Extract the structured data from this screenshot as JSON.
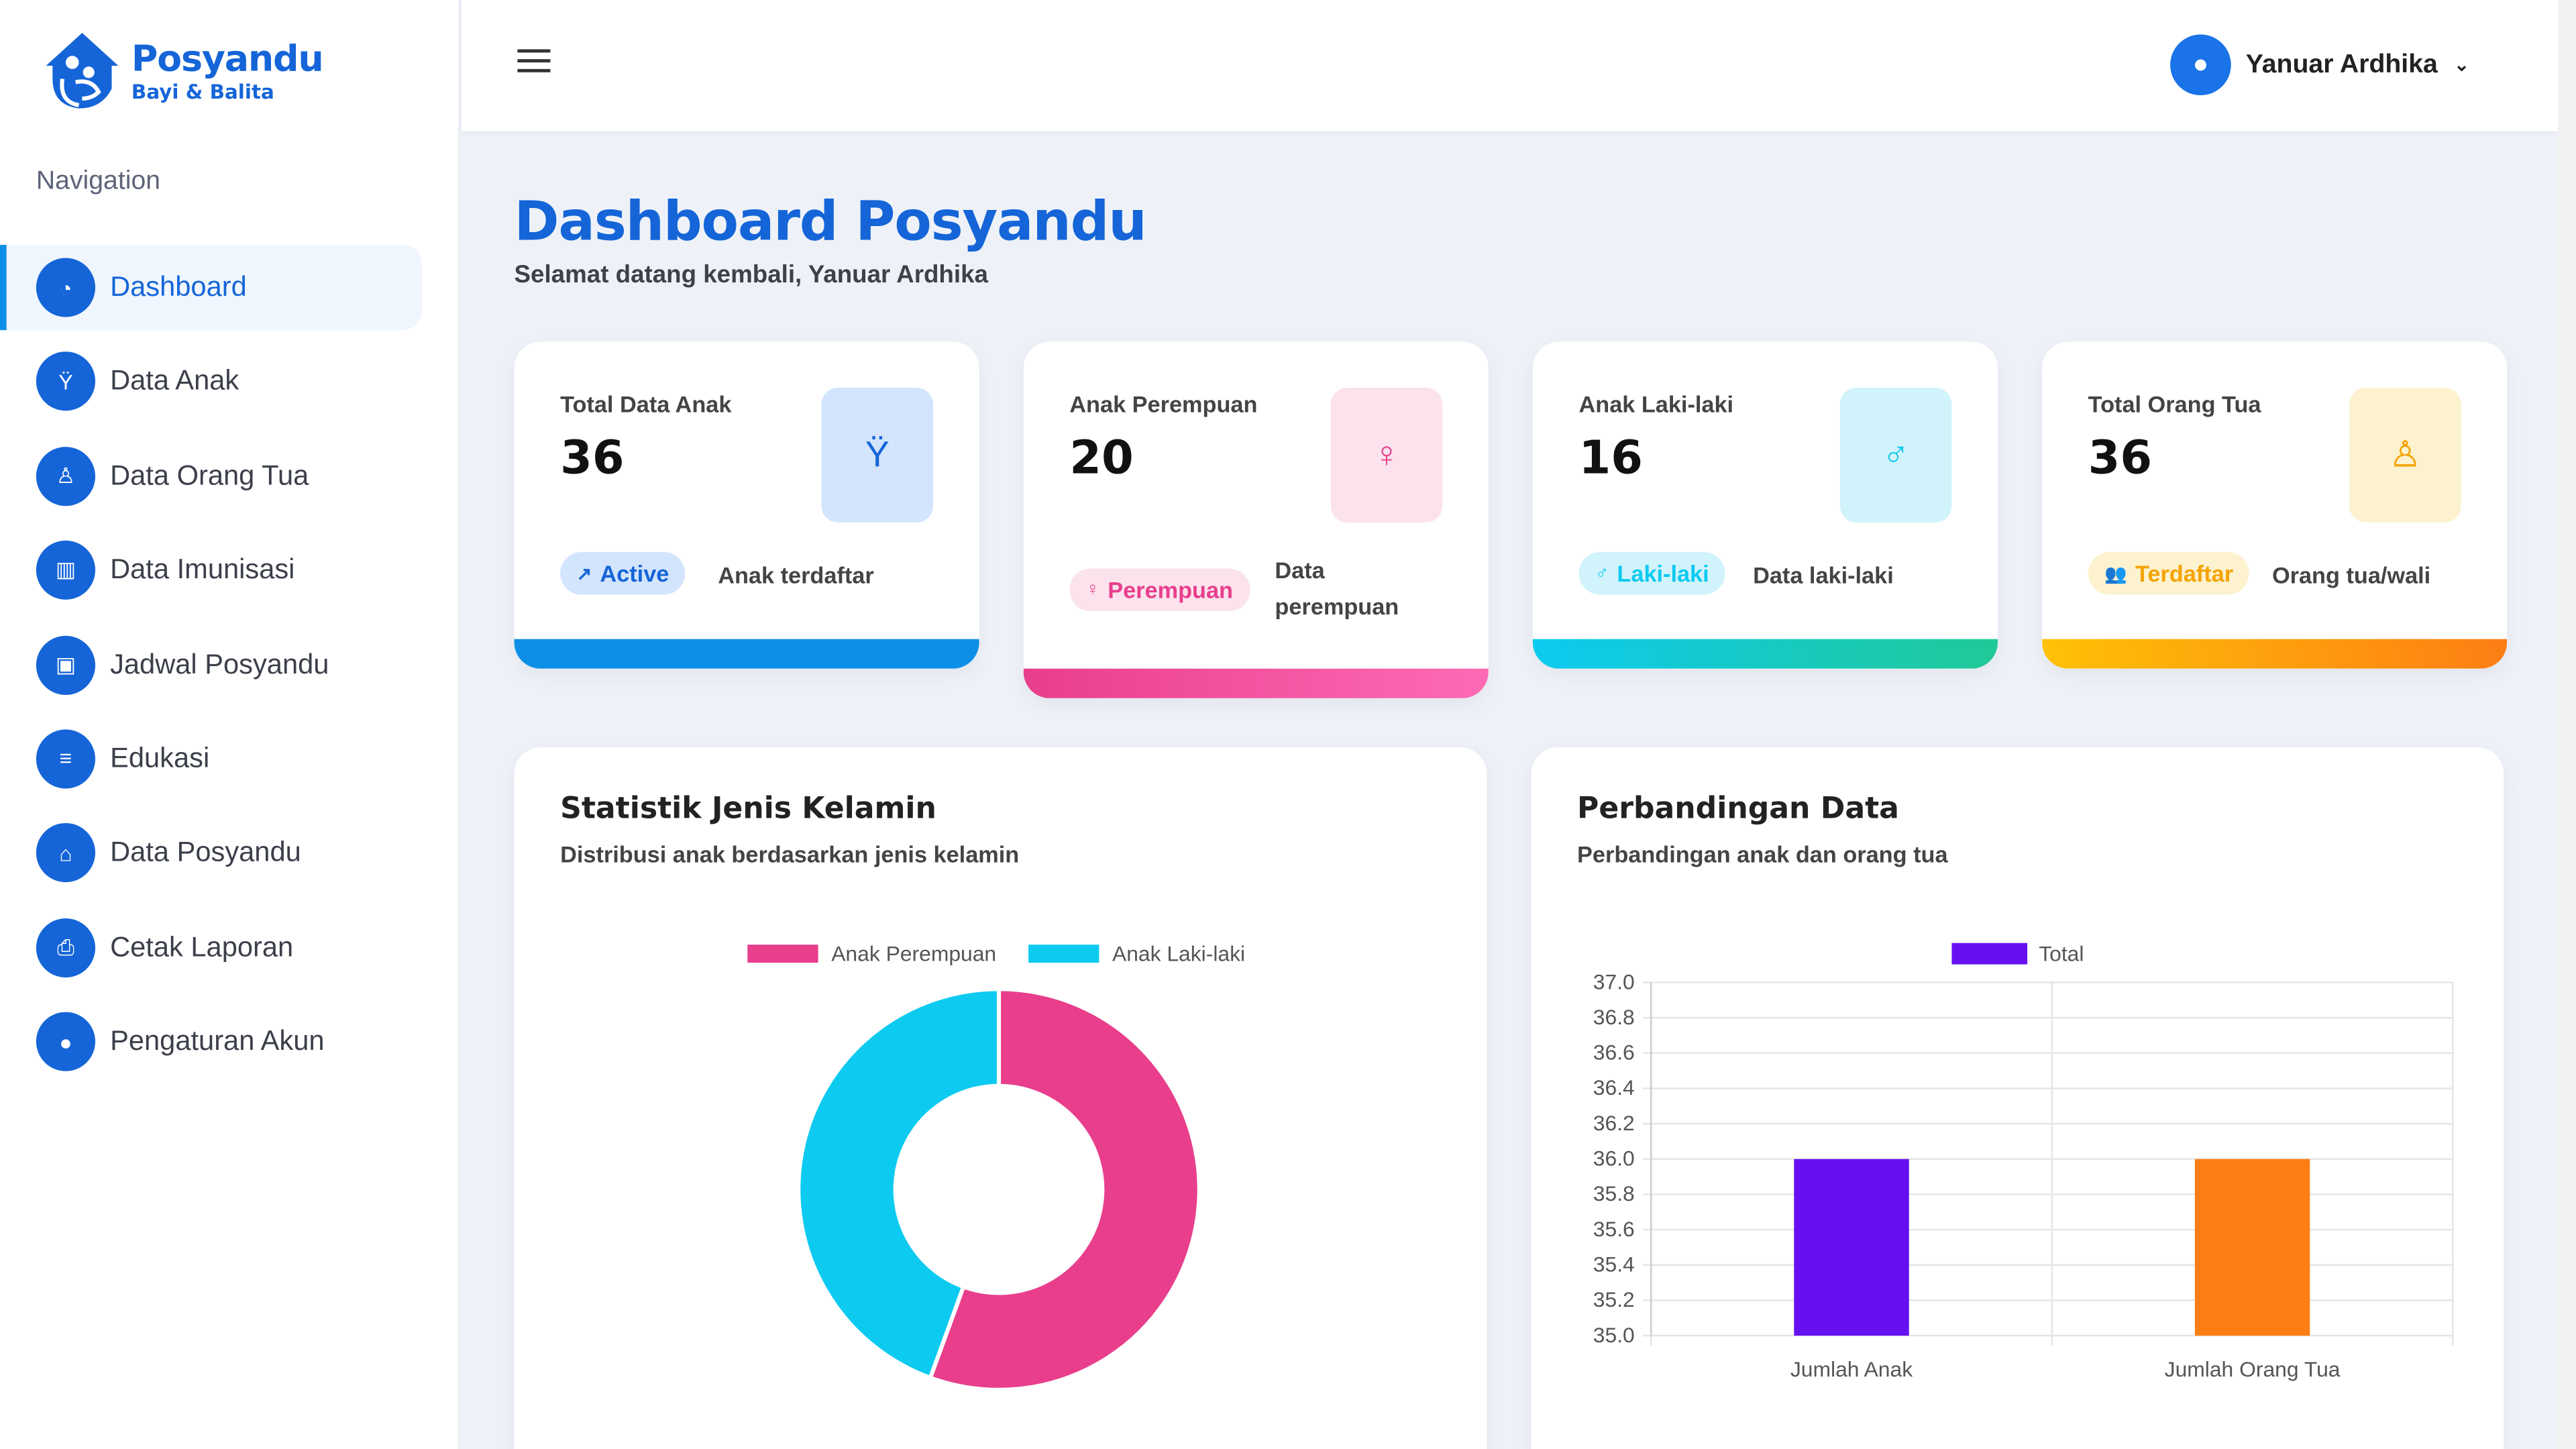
{
  "brand": {
    "title": "Posyandu",
    "subtitle": "Bayi & Balita"
  },
  "sidebar": {
    "heading": "Navigation",
    "items": [
      {
        "label": "Dashboard",
        "icon": "gauge-icon",
        "glyph": "◔"
      },
      {
        "label": "Data Anak",
        "icon": "child-icon",
        "glyph": "Ÿ"
      },
      {
        "label": "Data Orang Tua",
        "icon": "parent-icon",
        "glyph": "♙"
      },
      {
        "label": "Data Imunisasi",
        "icon": "chart-icon",
        "glyph": "▥"
      },
      {
        "label": "Jadwal Posyandu",
        "icon": "calendar-icon",
        "glyph": "▣"
      },
      {
        "label": "Edukasi",
        "icon": "document-icon",
        "glyph": "≡"
      },
      {
        "label": "Data Posyandu",
        "icon": "bag-icon",
        "glyph": "⌂"
      },
      {
        "label": "Cetak Laporan",
        "icon": "printer-icon",
        "glyph": "⎙"
      },
      {
        "label": "Pengaturan Akun",
        "icon": "user-icon",
        "glyph": "●"
      }
    ]
  },
  "user": {
    "name": "Yanuar Ardhika"
  },
  "page": {
    "title": "Dashboard Posyandu",
    "subtitle": "Selamat datang kembali, Yanuar Ardhika"
  },
  "cards": [
    {
      "label": "Total Data Anak",
      "value": "36",
      "badge": "Active",
      "badge_icon": "↗",
      "desc": "Anak terdaftar",
      "color": "#1565d8",
      "bg": "#d3e4fd",
      "glyph": "Ÿ"
    },
    {
      "label": "Anak Perempuan",
      "value": "20",
      "badge": "Perempuan",
      "badge_icon": "♀",
      "desc": "Data perempuan",
      "color": "#e83e8c",
      "bg": "#fbe2ec",
      "glyph": "♀"
    },
    {
      "label": "Anak Laki-laki",
      "value": "16",
      "badge": "Laki-laki",
      "badge_icon": "♂",
      "desc": "Data laki-laki",
      "color": "#0dcaf0",
      "bg": "#d1f3fb",
      "glyph": "♂"
    },
    {
      "label": "Total Orang Tua",
      "value": "36",
      "badge": "Terdaftar",
      "badge_icon": "👥",
      "desc": "Orang tua/wali",
      "color": "#f5a300",
      "bg": "#fdf2cf",
      "glyph": "♙"
    }
  ],
  "panels": {
    "gender": {
      "title": "Statistik Jenis Kelamin",
      "subtitle": "Distribusi anak berdasarkan jenis kelamin"
    },
    "compare": {
      "title": "Perbandingan Data",
      "subtitle": "Perbandingan anak dan orang tua"
    }
  },
  "chart_data": [
    {
      "type": "pie",
      "variant": "doughnut",
      "labels": [
        "Anak Perempuan",
        "Anak Laki-laki"
      ],
      "values": [
        20,
        16
      ],
      "colors": [
        "#e83e8c",
        "#0dcaf0"
      ],
      "legend": "top"
    },
    {
      "type": "bar",
      "categories": [
        "Jumlah Anak",
        "Jumlah Orang Tua"
      ],
      "series": [
        {
          "name": "Total",
          "values": [
            36,
            36
          ]
        }
      ],
      "colors": [
        "#6610f2",
        "#fd7e14"
      ],
      "ylim": [
        35.0,
        37.0
      ],
      "yticks": [
        "37.0",
        "36.8",
        "36.6",
        "36.4",
        "36.2",
        "36.0",
        "35.8",
        "35.6",
        "35.4",
        "35.2",
        "35.0"
      ],
      "grid": true,
      "legend": "top"
    }
  ]
}
